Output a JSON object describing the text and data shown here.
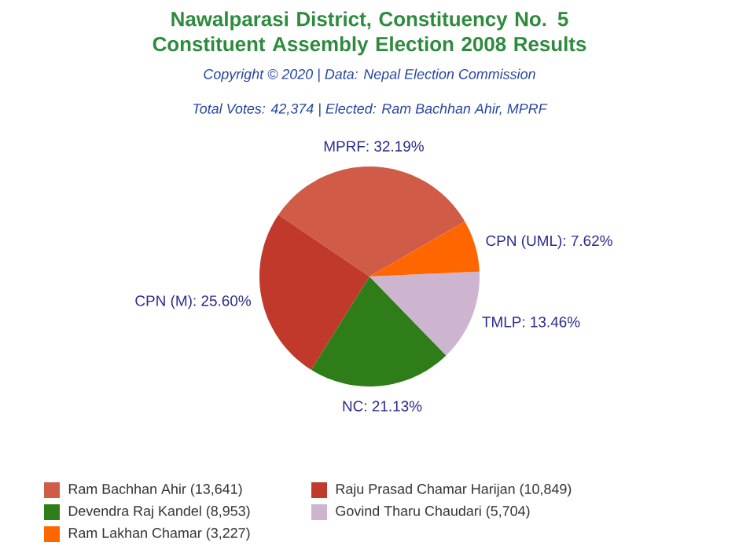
{
  "chart_data": {
    "type": "pie",
    "title": "Nawalparasi District, Constituency No. 5 Constituent Assembly Election 2008 Results",
    "subtitle": "Copyright © 2020 | Data: Nepal Election Commission",
    "annotations": [
      "Total Votes: 42,374 | Elected: Ram Bachhan Ahir, MPRF"
    ],
    "categories": [
      "Ram Bachhan Ahir (13,641)",
      "Raju Prasad Chamar Harijan (10,849)",
      "Devendra Raj Kandel (8,953)",
      "Govind Tharu Chaudari (5,704)",
      "Ram Lakhan Chamar (3,227)"
    ],
    "values": [
      32.19,
      25.6,
      21.13,
      13.46,
      7.62
    ],
    "value_labels": [
      "MPRF: 32.19%",
      "CPN (M): 25.60%",
      "NC: 21.13%",
      "TMLP: 13.46%",
      "CPN (UML): 7.62%"
    ],
    "colors": [
      "#d05c48",
      "#c0392b",
      "#2f7d18",
      "#cdb5cf",
      "#ff6600"
    ],
    "legend": "bottom"
  }
}
